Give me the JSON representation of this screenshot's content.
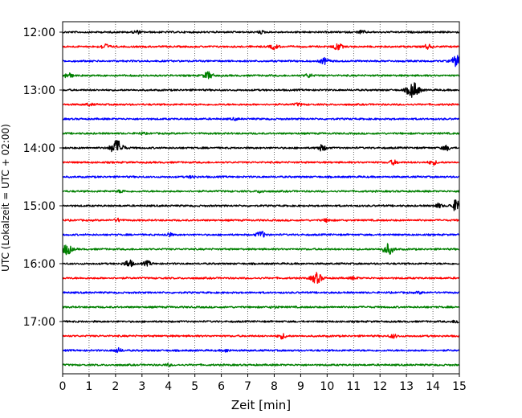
{
  "chart_data": {
    "type": "line",
    "title": "",
    "xlabel": "Zeit  [min]",
    "ylabel": "UTC (Lokalzeit = UTC + 02:00)",
    "xlim": [
      0,
      15
    ],
    "x_ticks": [
      0,
      1,
      2,
      3,
      4,
      5,
      6,
      7,
      8,
      9,
      10,
      11,
      12,
      13,
      14,
      15
    ],
    "grid": "vertical dotted",
    "y_tick_labels": [
      "12:00",
      "13:00",
      "14:00",
      "15:00",
      "16:00",
      "17:00"
    ],
    "y_tick_rows": [
      0,
      4,
      8,
      12,
      16,
      20
    ],
    "colors": [
      "#000000",
      "#ff0000",
      "#0000ff",
      "#008000"
    ],
    "trace_interval_minutes": 15,
    "series": [
      {
        "start": "12:00",
        "events": [
          [
            2.8,
            0.25
          ],
          [
            7.5,
            0.2
          ],
          [
            11.3,
            0.25
          ]
        ]
      },
      {
        "start": "12:15",
        "events": [
          [
            1.6,
            0.45
          ],
          [
            8.0,
            0.4
          ],
          [
            10.4,
            0.55
          ],
          [
            13.8,
            0.35
          ]
        ]
      },
      {
        "start": "12:30",
        "events": [
          [
            9.9,
            0.5
          ],
          [
            14.9,
            0.9
          ]
        ]
      },
      {
        "start": "12:45",
        "events": [
          [
            0.2,
            0.45
          ],
          [
            5.5,
            0.6
          ],
          [
            9.3,
            0.3
          ]
        ]
      },
      {
        "start": "13:00",
        "events": [
          [
            13.25,
            1.3
          ]
        ]
      },
      {
        "start": "13:15",
        "events": [
          [
            1.0,
            0.2
          ],
          [
            8.9,
            0.2
          ]
        ]
      },
      {
        "start": "13:30",
        "events": [
          [
            6.5,
            0.15
          ]
        ]
      },
      {
        "start": "13:45",
        "events": [
          [
            3.0,
            0.15
          ]
        ]
      },
      {
        "start": "14:00",
        "events": [
          [
            2.05,
            1.3
          ],
          [
            9.8,
            0.5
          ],
          [
            14.5,
            0.4
          ]
        ]
      },
      {
        "start": "14:15",
        "events": [
          [
            12.5,
            0.35
          ],
          [
            14.0,
            0.35
          ]
        ]
      },
      {
        "start": "14:30",
        "events": [
          [
            4.9,
            0.2
          ]
        ]
      },
      {
        "start": "14:45",
        "events": [
          [
            2.2,
            0.2
          ],
          [
            7.5,
            0.2
          ]
        ]
      },
      {
        "start": "15:00",
        "events": [
          [
            14.95,
            1.2
          ],
          [
            14.2,
            0.35
          ]
        ]
      },
      {
        "start": "15:15",
        "events": [
          [
            2.1,
            0.25
          ],
          [
            10.0,
            0.25
          ]
        ]
      },
      {
        "start": "15:30",
        "events": [
          [
            4.0,
            0.3
          ],
          [
            7.5,
            0.55
          ]
        ]
      },
      {
        "start": "15:45",
        "events": [
          [
            0.15,
            0.9
          ],
          [
            12.3,
            0.9
          ]
        ]
      },
      {
        "start": "16:00",
        "events": [
          [
            2.5,
            0.6
          ],
          [
            3.2,
            0.4
          ]
        ]
      },
      {
        "start": "16:15",
        "events": [
          [
            9.6,
            0.9
          ],
          [
            11.0,
            0.2
          ]
        ]
      },
      {
        "start": "16:30",
        "events": [
          [
            13.5,
            0.15
          ]
        ]
      },
      {
        "start": "16:45",
        "events": [
          [
            8.0,
            0.15
          ]
        ]
      },
      {
        "start": "17:00",
        "events": [
          [
            14.9,
            0.25
          ]
        ]
      },
      {
        "start": "17:15",
        "events": [
          [
            8.3,
            0.4
          ],
          [
            12.5,
            0.3
          ]
        ]
      },
      {
        "start": "17:30",
        "events": [
          [
            2.1,
            0.35
          ],
          [
            6.2,
            0.2
          ]
        ]
      },
      {
        "start": "17:45",
        "events": [
          [
            4.0,
            0.15
          ]
        ]
      }
    ]
  }
}
